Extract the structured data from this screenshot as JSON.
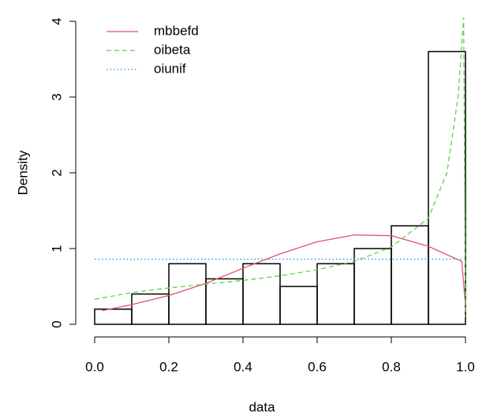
{
  "chart_data": {
    "type": "histogram",
    "xlabel": "data",
    "ylabel": "Density",
    "bins": [
      0,
      0.1,
      0.2,
      0.3,
      0.4,
      0.5,
      0.6,
      0.7,
      0.8,
      0.9,
      1.0
    ],
    "values": [
      0.2,
      0.4,
      0.8,
      0.6,
      0.8,
      0.5,
      0.8,
      1.0,
      1.3,
      3.6
    ],
    "color": "#000000",
    "series": [
      {
        "name": "mbbefd",
        "color": "#DF536B",
        "dash": "solid",
        "x": [
          0.02,
          0.1,
          0.2,
          0.3,
          0.4,
          0.5,
          0.6,
          0.7,
          0.8,
          0.9,
          0.99,
          1.0
        ],
        "values": [
          0.18,
          0.26,
          0.38,
          0.54,
          0.74,
          0.93,
          1.09,
          1.18,
          1.17,
          1.03,
          0.83,
          0.25
        ]
      },
      {
        "name": "oibeta",
        "color": "#61D04F",
        "dash": "dashed",
        "x": [
          0.0,
          0.1,
          0.2,
          0.3,
          0.4,
          0.5,
          0.6,
          0.7,
          0.8,
          0.9,
          0.95,
          0.98,
          0.995,
          1.0
        ],
        "values": [
          0.33,
          0.42,
          0.48,
          0.53,
          0.58,
          0.64,
          0.72,
          0.83,
          1.02,
          1.4,
          2.0,
          3.0,
          4.05,
          0.1
        ]
      },
      {
        "name": "oiunif",
        "color": "#2297E6",
        "dash": "dotted",
        "x": [
          0.0,
          0.99
        ],
        "values": [
          0.86,
          0.86
        ]
      }
    ],
    "xlim": [
      0,
      1
    ],
    "ylim": [
      0,
      4
    ],
    "xticks": [
      {
        "value": 0,
        "label": "0.0"
      },
      0.2,
      0.4,
      0.6,
      0.8,
      {
        "value": 1,
        "label": "1.0"
      }
    ],
    "yticks": [
      0,
      1,
      2,
      3,
      4
    ],
    "legend": "topleft"
  }
}
